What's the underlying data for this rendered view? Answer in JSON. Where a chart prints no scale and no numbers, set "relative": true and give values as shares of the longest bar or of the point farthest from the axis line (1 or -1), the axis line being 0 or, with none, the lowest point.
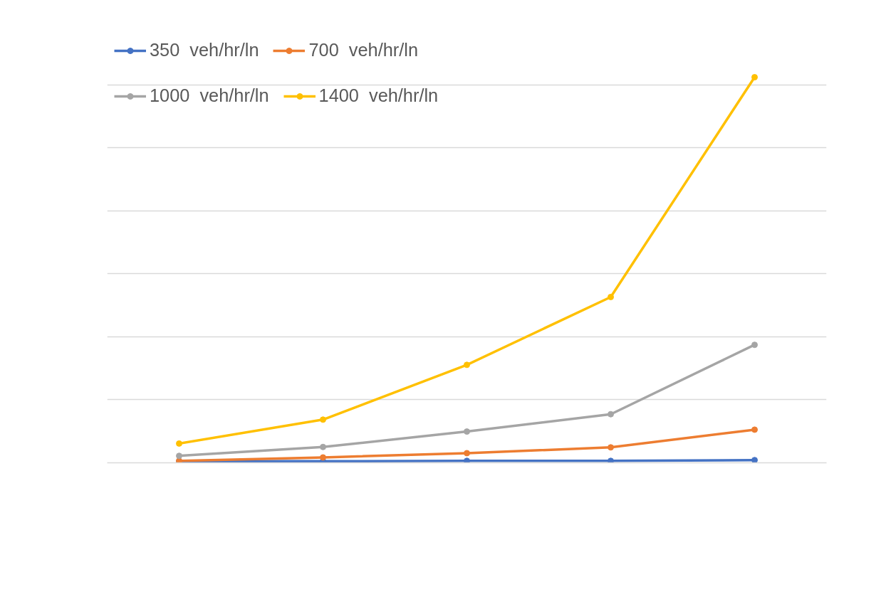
{
  "chart_data": {
    "type": "line",
    "relative": true,
    "categories": [
      null,
      null,
      null,
      null,
      null
    ],
    "grid": "y",
    "legend": "top left",
    "marker": "circle",
    "line_style": "solid",
    "series": [
      {
        "name": "350  veh/hr/ln",
        "color": "#4472c4",
        "values": [
          0.004,
          0.004,
          0.005,
          0.005,
          0.007
        ]
      },
      {
        "name": "700  veh/hr/ln",
        "color": "#ed7d31",
        "values": [
          0.005,
          0.014,
          0.025,
          0.04,
          0.086
        ]
      },
      {
        "name": "1000  veh/hr/ln",
        "color": "#a5a5a5",
        "values": [
          0.018,
          0.041,
          0.081,
          0.126,
          0.306
        ]
      },
      {
        "name": "1400  veh/hr/ln",
        "color": "#ffc000",
        "values": [
          0.05,
          0.112,
          0.254,
          0.43,
          1
        ]
      }
    ]
  }
}
